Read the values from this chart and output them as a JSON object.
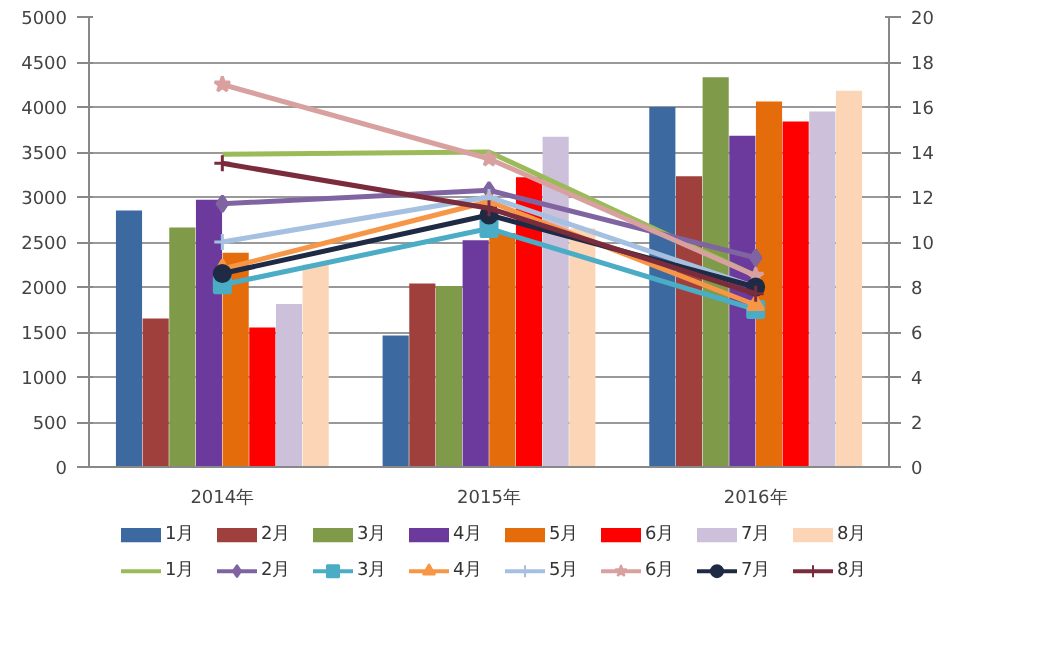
{
  "chart_data": {
    "type": "bar",
    "categories": [
      "2014年",
      "2015年",
      "2016年"
    ],
    "ylim": [
      0,
      5000
    ],
    "yticks": [
      0,
      500,
      1000,
      1500,
      2000,
      2500,
      3000,
      3500,
      4000,
      4500,
      5000
    ],
    "y2lim": [
      0,
      20
    ],
    "y2ticks": [
      0,
      2,
      4,
      6,
      8,
      10,
      12,
      14,
      16,
      18,
      20
    ],
    "grid": "y",
    "legend": "bottom",
    "series": [
      {
        "name": "1月",
        "color": "#3c6aa0",
        "values": [
          2850,
          1460,
          4000
        ]
      },
      {
        "name": "2月",
        "color": "#a0403d",
        "values": [
          1650,
          2040,
          3230
        ]
      },
      {
        "name": "3月",
        "color": "#7f9a48",
        "values": [
          2660,
          2010,
          4330
        ]
      },
      {
        "name": "4月",
        "color": "#6b3a9c",
        "values": [
          2970,
          2520,
          3680
        ]
      },
      {
        "name": "5月",
        "color": "#e46c0a",
        "values": [
          2380,
          2600,
          4060
        ]
      },
      {
        "name": "6月",
        "color": "#ff0000",
        "values": [
          1550,
          3220,
          3840
        ]
      },
      {
        "name": "7月",
        "color": "#ccc0da",
        "values": [
          1810,
          3670,
          3950
        ]
      },
      {
        "name": "8月",
        "color": "#fbd5b5",
        "values": [
          2250,
          2650,
          4180
        ]
      },
      {
        "name": "1月",
        "type": "line",
        "axis": "y2",
        "marker": "none",
        "color": "#9bbb59",
        "values": [
          13.9,
          14.0,
          8.5
        ]
      },
      {
        "name": "2月",
        "type": "line",
        "axis": "y2",
        "marker": "diamond",
        "color": "#8064a2",
        "values": [
          11.7,
          12.3,
          9.3
        ]
      },
      {
        "name": "3月",
        "type": "line",
        "axis": "y2",
        "marker": "square",
        "color": "#4bacc6",
        "values": [
          8.1,
          10.6,
          7.0
        ]
      },
      {
        "name": "4月",
        "type": "line",
        "axis": "y2",
        "marker": "triangle",
        "color": "#f79646",
        "values": [
          8.8,
          11.8,
          7.2
        ]
      },
      {
        "name": "5月",
        "type": "line",
        "axis": "y2",
        "marker": "cross",
        "color": "#a5c0e0",
        "values": [
          10.0,
          12.0,
          8.0
        ]
      },
      {
        "name": "6月",
        "type": "line",
        "axis": "y2",
        "marker": "star",
        "color": "#d9a0a0",
        "values": [
          17.0,
          13.7,
          8.5
        ]
      },
      {
        "name": "7月",
        "type": "line",
        "axis": "y2",
        "marker": "circle",
        "color": "#1f2a44",
        "values": [
          8.6,
          11.2,
          8.0
        ]
      },
      {
        "name": "8月",
        "type": "line",
        "axis": "y2",
        "marker": "cross",
        "color": "#7b2c3c",
        "values": [
          13.5,
          11.5,
          7.7
        ]
      }
    ]
  }
}
